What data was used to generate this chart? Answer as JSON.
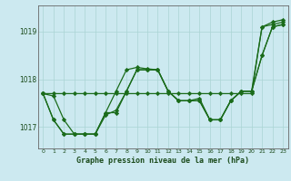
{
  "title": "Graphe pression niveau de la mer (hPa)",
  "yticks": [
    1017,
    1018,
    1019
  ],
  "ylim": [
    1016.55,
    1019.55
  ],
  "xlim": [
    -0.5,
    23.5
  ],
  "bg_color": "#cce9f0",
  "grid_color": "#aad4d4",
  "line_color": "#1a6b1a",
  "marker": "D",
  "markersize": 2.2,
  "linewidth": 0.9,
  "series": [
    [
      1017.7,
      1017.65,
      1017.15,
      1016.85,
      1016.85,
      1016.85,
      1017.3,
      1017.75,
      1018.2,
      1018.25,
      1018.22,
      1018.2,
      1017.75,
      1017.55,
      1017.55,
      1017.6,
      1017.15,
      1017.15,
      1017.55,
      1017.75,
      1017.75,
      1018.5,
      1019.1,
      1019.15
    ],
    [
      1017.7,
      1017.15,
      1016.85,
      1016.85,
      1016.85,
      1016.85,
      1017.25,
      1017.35,
      1017.75,
      1018.2,
      1018.2,
      1018.2,
      1017.75,
      1017.55,
      1017.55,
      1017.55,
      1017.15,
      1017.15,
      1017.55,
      1017.75,
      1017.75,
      1018.5,
      1019.1,
      1019.15
    ],
    [
      1017.7,
      1017.15,
      1016.85,
      1016.85,
      1016.85,
      1016.85,
      1017.3,
      1017.3,
      1017.75,
      1018.2,
      1018.2,
      1018.2,
      1017.75,
      1017.55,
      1017.55,
      1017.55,
      1017.15,
      1017.15,
      1017.55,
      1017.75,
      1017.75,
      1019.1,
      1019.15,
      1019.2
    ],
    [
      1017.7,
      1017.7,
      1017.7,
      1017.7,
      1017.7,
      1017.7,
      1017.7,
      1017.7,
      1017.7,
      1017.7,
      1017.7,
      1017.7,
      1017.7,
      1017.7,
      1017.7,
      1017.7,
      1017.7,
      1017.7,
      1017.7,
      1017.7,
      1017.7,
      1019.1,
      1019.2,
      1019.25
    ]
  ]
}
